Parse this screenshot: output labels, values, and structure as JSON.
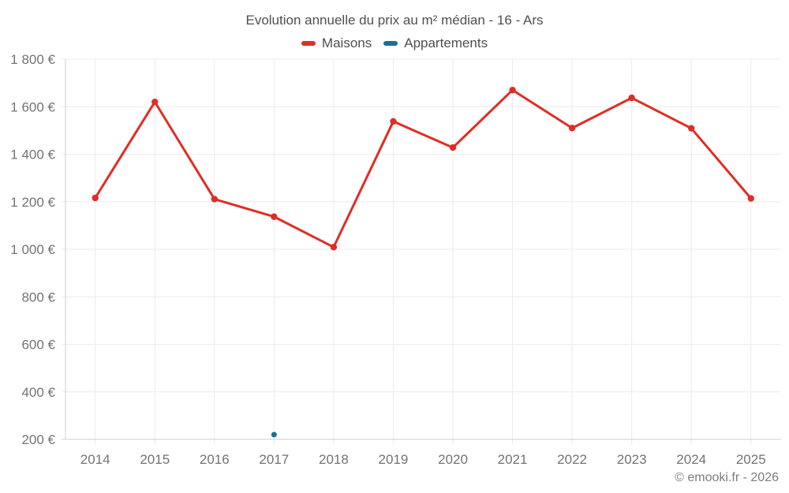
{
  "chart_data": {
    "type": "line",
    "title": "Evolution annuelle du prix au m² médian - 16 - Ars",
    "x": [
      2014,
      2015,
      2016,
      2017,
      2018,
      2019,
      2020,
      2021,
      2022,
      2023,
      2024,
      2025
    ],
    "series": [
      {
        "name": "Maisons",
        "color": "#e12d26",
        "values": [
          1216,
          1620,
          1211,
          1137,
          1009,
          1538,
          1428,
          1670,
          1510,
          1637,
          1509,
          1214
        ]
      },
      {
        "name": "Appartements",
        "color": "#1b6d9d",
        "points": [
          {
            "x": 2017,
            "y": 220
          }
        ]
      }
    ],
    "xlabel": "",
    "ylabel": "",
    "ylim": [
      200,
      1800
    ],
    "ytick_step": 200,
    "ytick_suffix": " €",
    "grid": true,
    "legend_position": "top"
  },
  "footer": {
    "text": "© emooki.fr - 2026"
  },
  "colors": {
    "background": "#ffffff",
    "grid": "#ececec",
    "axis": "#cccccc",
    "tick_label": "#737373",
    "title_text": "#4f4f4f",
    "footer_text": "#7d7d7d",
    "maisons_red": "#e12d26",
    "appartements_blue": "#1b6d9d"
  }
}
